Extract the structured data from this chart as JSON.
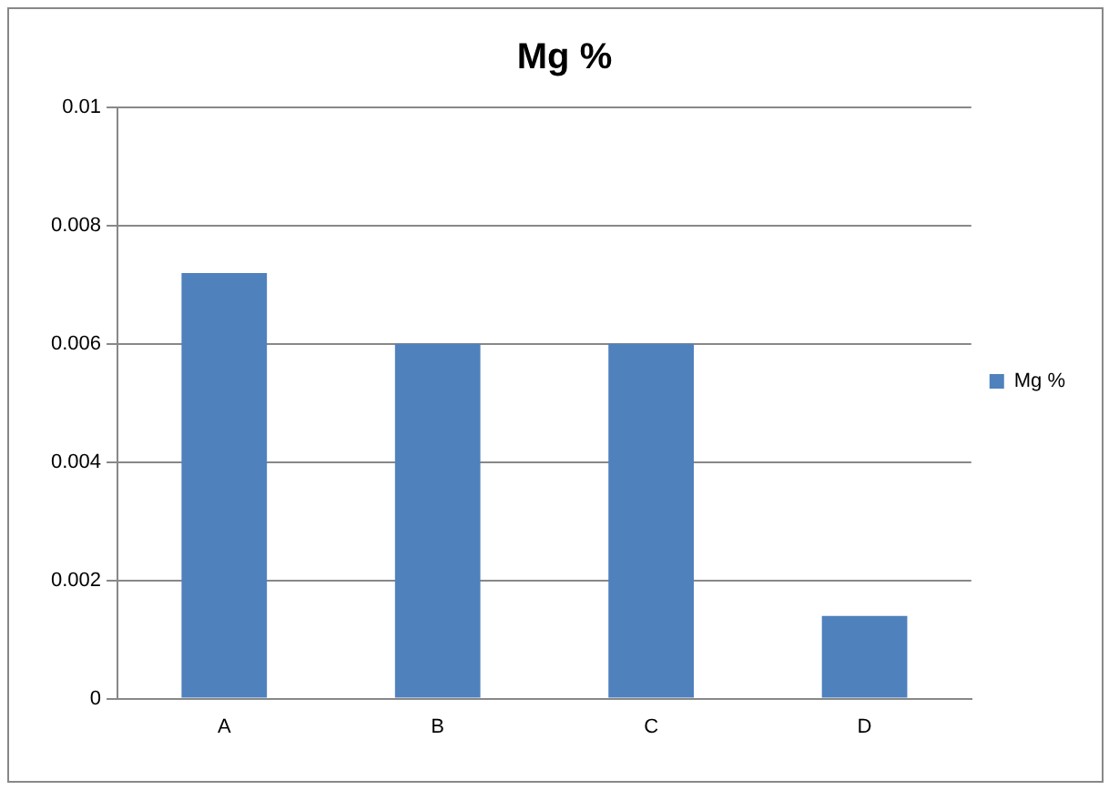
{
  "chart_data": {
    "type": "bar",
    "title": "Mg %",
    "categories": [
      "A",
      "B",
      "C",
      "D"
    ],
    "series": [
      {
        "name": "Mg %",
        "color": "#4f81bd",
        "values": [
          0.0072,
          0.006,
          0.006,
          0.0014
        ]
      }
    ],
    "ylim": [
      0,
      0.01
    ],
    "yticks": [
      0,
      0.002,
      0.004,
      0.006,
      0.008,
      0.01
    ],
    "grid": "y",
    "legend": "right"
  }
}
